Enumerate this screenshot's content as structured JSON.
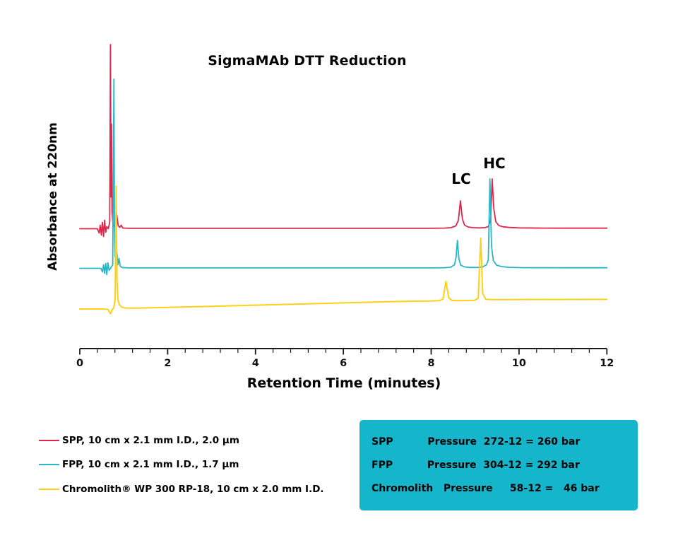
{
  "colors": {
    "spp": "#dd2749",
    "fpp": "#27b7c8",
    "chromolith": "#ffd016",
    "axis": "#1a1a1a",
    "pressure_box_bg": "#15b6cc"
  },
  "chart_data": {
    "type": "line",
    "title": "SigmaMAb DTT Reduction",
    "xlabel": "Retention Time (minutes)",
    "ylabel": "Absorbance at 220nm",
    "xlim": [
      0,
      12
    ],
    "x_ticks": [
      0,
      2,
      4,
      6,
      8,
      10,
      12
    ],
    "x_minor_tick_step": 0.4,
    "grid": "off",
    "legend_position": "bottom-left",
    "peak_labels": [
      {
        "text": "LC",
        "t_min": 8.68
      },
      {
        "text": "HC",
        "t_min": 9.42
      }
    ],
    "peak_retention_minutes": {
      "SPP": {
        "LC": 8.67,
        "HC": 9.39
      },
      "FPP": {
        "LC": 8.6,
        "HC": 9.34
      },
      "Chromolith": {
        "LC": 8.34,
        "HC": 9.13
      }
    },
    "series": [
      {
        "name": "SPP",
        "color": "#dd2749",
        "stroke_width": 1.8,
        "points": [
          [
            0,
            0
          ],
          [
            0.4,
            0
          ],
          [
            0.44,
            -6
          ],
          [
            0.465,
            5
          ],
          [
            0.49,
            -9
          ],
          [
            0.515,
            9
          ],
          [
            0.54,
            -11
          ],
          [
            0.565,
            12
          ],
          [
            0.59,
            -5
          ],
          [
            0.615,
            3
          ],
          [
            0.65,
            0
          ],
          [
            0.682,
            10
          ],
          [
            0.698,
            260.5
          ],
          [
            0.71,
            45
          ],
          [
            0.722,
            148
          ],
          [
            0.735,
            25
          ],
          [
            0.755,
            6
          ],
          [
            0.79,
            3
          ],
          [
            0.835,
            23
          ],
          [
            0.875,
            4
          ],
          [
            0.91,
            2
          ],
          [
            0.94,
            5
          ],
          [
            0.98,
            1
          ],
          [
            1.1,
            0.6
          ],
          [
            2,
            0.6
          ],
          [
            3,
            0.6
          ],
          [
            4,
            0.6
          ],
          [
            5,
            0.6
          ],
          [
            6,
            0.6
          ],
          [
            7,
            0.6
          ],
          [
            8,
            0.6
          ],
          [
            8.3,
            0.9
          ],
          [
            8.45,
            1.5
          ],
          [
            8.56,
            4
          ],
          [
            8.62,
            12
          ],
          [
            8.665,
            39.5
          ],
          [
            8.71,
            14
          ],
          [
            8.76,
            5
          ],
          [
            8.84,
            2.5
          ],
          [
            8.95,
            1.5
          ],
          [
            9.1,
            1.2
          ],
          [
            9.22,
            1.5
          ],
          [
            9.3,
            3
          ],
          [
            9.352,
            12
          ],
          [
            9.388,
            70.5
          ],
          [
            9.425,
            28
          ],
          [
            9.47,
            10
          ],
          [
            9.54,
            4.5
          ],
          [
            9.63,
            2.8
          ],
          [
            9.78,
            1.8
          ],
          [
            10,
            1.2
          ],
          [
            10.5,
            0.9
          ],
          [
            11,
            0.8
          ],
          [
            12,
            0.8
          ]
        ]
      },
      {
        "name": "FPP",
        "color": "#27b7c8",
        "stroke_width": 1.8,
        "points": [
          [
            0,
            0
          ],
          [
            0.48,
            0
          ],
          [
            0.515,
            -5
          ],
          [
            0.54,
            5
          ],
          [
            0.565,
            -7
          ],
          [
            0.59,
            7
          ],
          [
            0.615,
            -9
          ],
          [
            0.64,
            8
          ],
          [
            0.665,
            -3
          ],
          [
            0.7,
            0
          ],
          [
            0.75,
            5
          ],
          [
            0.776,
            267.5
          ],
          [
            0.79,
            55
          ],
          [
            0.8,
            18
          ],
          [
            0.822,
            10
          ],
          [
            0.845,
            22
          ],
          [
            0.868,
            5
          ],
          [
            0.893,
            14
          ],
          [
            0.92,
            3
          ],
          [
            0.96,
            1.2
          ],
          [
            1.1,
            0.6
          ],
          [
            2,
            0.6
          ],
          [
            3,
            0.6
          ],
          [
            4,
            0.6
          ],
          [
            5,
            0.6
          ],
          [
            6,
            0.6
          ],
          [
            7,
            0.6
          ],
          [
            8,
            0.6
          ],
          [
            8.3,
            0.8
          ],
          [
            8.44,
            1.5
          ],
          [
            8.53,
            5
          ],
          [
            8.565,
            15
          ],
          [
            8.598,
            39.5
          ],
          [
            8.63,
            14
          ],
          [
            8.672,
            4.5
          ],
          [
            8.76,
            2
          ],
          [
            8.88,
            1.2
          ],
          [
            9.05,
            1.2
          ],
          [
            9.17,
            2
          ],
          [
            9.26,
            5
          ],
          [
            9.3,
            12
          ],
          [
            9.337,
            126.5
          ],
          [
            9.372,
            32
          ],
          [
            9.415,
            11
          ],
          [
            9.49,
            4.5
          ],
          [
            9.6,
            2.5
          ],
          [
            9.78,
            1.4
          ],
          [
            10.1,
            0.9
          ],
          [
            11,
            0.8
          ],
          [
            12,
            0.8
          ]
        ]
      },
      {
        "name": "Chromolith",
        "color": "#ffd016",
        "stroke_width": 2,
        "points": [
          [
            0,
            0
          ],
          [
            0.52,
            0
          ],
          [
            0.64,
            -0.5
          ],
          [
            0.7,
            -7
          ],
          [
            0.73,
            -2
          ],
          [
            0.775,
            2
          ],
          [
            0.805,
            15
          ],
          [
            0.827,
            174
          ],
          [
            0.845,
            45
          ],
          [
            0.868,
            13
          ],
          [
            0.9,
            6
          ],
          [
            0.95,
            2.8
          ],
          [
            1.05,
            1.2
          ],
          [
            1.3,
            1.2
          ],
          [
            2,
            2.2
          ],
          [
            3,
            3.8
          ],
          [
            4,
            5.4
          ],
          [
            5,
            7
          ],
          [
            6,
            8.6
          ],
          [
            7,
            10.2
          ],
          [
            7.6,
            11
          ],
          [
            8.0,
            11.3
          ],
          [
            8.18,
            11.8
          ],
          [
            8.27,
            14
          ],
          [
            8.335,
            39
          ],
          [
            8.4,
            16
          ],
          [
            8.47,
            12.3
          ],
          [
            8.6,
            11.8
          ],
          [
            8.8,
            12
          ],
          [
            8.98,
            12.3
          ],
          [
            9.07,
            15
          ],
          [
            9.128,
            100
          ],
          [
            9.172,
            22
          ],
          [
            9.24,
            13.8
          ],
          [
            9.4,
            13.2
          ],
          [
            9.7,
            13.3
          ],
          [
            10,
            13.4
          ],
          [
            11,
            13.5
          ],
          [
            12,
            13.6
          ]
        ]
      }
    ]
  },
  "legend": {
    "items": [
      {
        "label": "SPP, 10 cm x 2.1 mm I.D., 2.0 μm",
        "color": "#dd2749"
      },
      {
        "label": "FPP, 10 cm x 2.1 mm I.D., 1.7 μm",
        "color": "#27b7c8"
      },
      {
        "label": "Chromolith® WP 300 RP-18, 10 cm x 2.0 mm I.D.",
        "color": "#ffd016"
      }
    ]
  },
  "pressure_box": {
    "bg": "#15b6cc",
    "rows": [
      "SPP          Pressure  272-12 = 260 bar",
      "FPP          Pressure  304-12 = 292 bar",
      "Chromolith   Pressure     58-12 =   46 bar"
    ]
  }
}
